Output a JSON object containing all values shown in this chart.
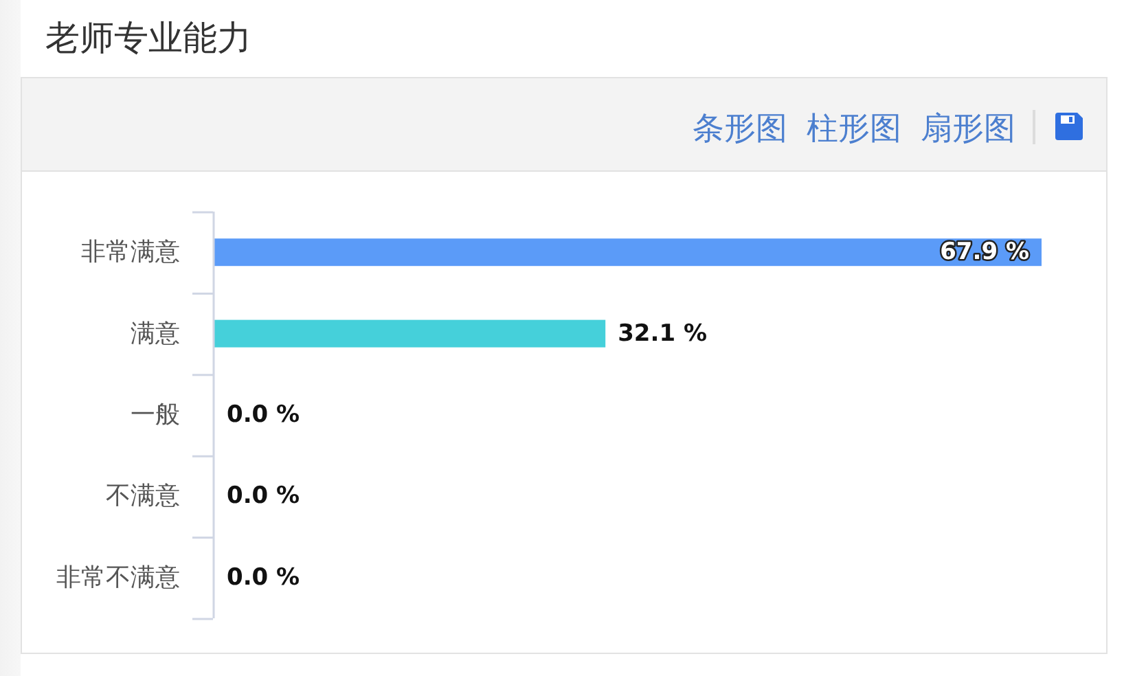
{
  "chart_data": {
    "type": "bar",
    "orientation": "horizontal",
    "title": "老师专业能力",
    "annotations": [
      "条形图",
      "柱形图",
      "扇形图"
    ],
    "categories": [
      "非常满意",
      "满意",
      "一般",
      "不满意",
      "非常不满意"
    ],
    "values": [
      67.9,
      32.1,
      0.0,
      0.0,
      0.0
    ],
    "colors": [
      "#5b9bf8",
      "#45d0da",
      null,
      null,
      null
    ],
    "value_labels": [
      "67.9 %",
      "32.1 %",
      "0.0 %",
      "0.0 %",
      "0.0 %"
    ]
  }
}
